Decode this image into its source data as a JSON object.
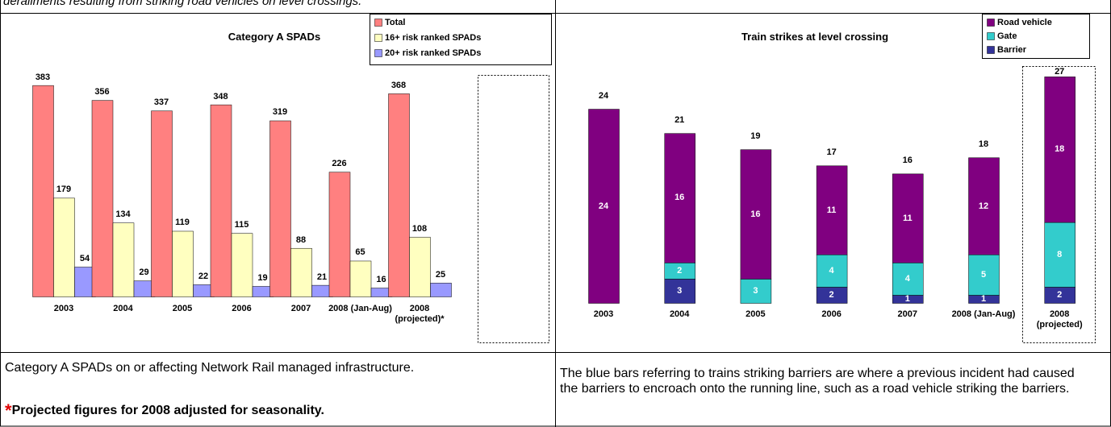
{
  "header_text": "derailments resulting from striking road vehicles on level crossings.",
  "chart_data": [
    {
      "type": "bar",
      "title": "Category A SPADs",
      "legend": "upper right",
      "categories": [
        "2003",
        "2004",
        "2005",
        "2006",
        "2007",
        "2008 (Jan-Aug)",
        "2008 (projected)*"
      ],
      "series": [
        {
          "name": "Total",
          "color": "#ff8080",
          "values": [
            383,
            356,
            337,
            348,
            319,
            226,
            368
          ]
        },
        {
          "name": "16+ risk ranked SPADs",
          "color": "#ffffc0",
          "values": [
            179,
            134,
            119,
            115,
            88,
            65,
            108
          ]
        },
        {
          "name": "20+ risk ranked SPADs",
          "color": "#9999ff",
          "values": [
            54,
            29,
            22,
            19,
            21,
            16,
            25
          ]
        }
      ]
    },
    {
      "type": "stacked_bar",
      "title": "Train strikes at level crossing",
      "legend": "upper right",
      "categories": [
        "2003",
        "2004",
        "2005",
        "2006",
        "2007",
        "2008 (Jan-Aug)",
        "2008 (projected)"
      ],
      "series": [
        {
          "name": "Road vehicle",
          "color": "#800080",
          "values": [
            24,
            16,
            16,
            11,
            11,
            12,
            18
          ]
        },
        {
          "name": "Gate",
          "color": "#33cccc",
          "values": [
            null,
            2,
            3,
            4,
            4,
            5,
            8
          ]
        },
        {
          "name": "Barrier",
          "color": "#333399",
          "values": [
            null,
            3,
            null,
            2,
            1,
            1,
            2
          ]
        }
      ],
      "totals": [
        24,
        21,
        19,
        17,
        16,
        18,
        27
      ]
    }
  ],
  "captions": {
    "left": "Category A SPADs on or affecting Network Rail managed infrastructure.",
    "left_note_mark": "*",
    "left_note": "Projected figures for 2008 adjusted for seasonality.",
    "right": "The blue bars referring to trains striking barriers are where a previous incident had caused the barriers to encroach onto the running line, such as a road vehicle striking the barriers."
  }
}
